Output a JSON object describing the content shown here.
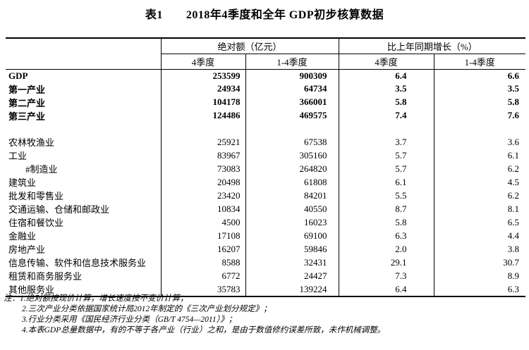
{
  "title": "表1　　2018年4季度和全年 GDP初步核算数据",
  "table": {
    "header": {
      "abs_group": "绝对额（亿元）",
      "growth_group": "比上年同期增长（%）",
      "q4": "4季度",
      "q14": "1-4季度"
    },
    "rows": [
      {
        "label": "GDP",
        "abs_q4": "253599",
        "abs_q14": "900309",
        "growth_q4": "6.4",
        "growth_q14": "6.6",
        "bold": true
      },
      {
        "label": "第一产业",
        "abs_q4": "24934",
        "abs_q14": "64734",
        "growth_q4": "3.5",
        "growth_q14": "3.5",
        "bold": true
      },
      {
        "label": "第二产业",
        "abs_q4": "104178",
        "abs_q14": "366001",
        "growth_q4": "5.8",
        "growth_q14": "5.8",
        "bold": true
      },
      {
        "label": "第三产业",
        "abs_q4": "124486",
        "abs_q14": "469575",
        "growth_q4": "7.4",
        "growth_q14": "7.6",
        "bold": true
      },
      {
        "blank": true
      },
      {
        "label": "农林牧渔业",
        "abs_q4": "25921",
        "abs_q14": "67538",
        "growth_q4": "3.7",
        "growth_q14": "3.6"
      },
      {
        "label": "工业",
        "abs_q4": "83967",
        "abs_q14": "305160",
        "growth_q4": "5.7",
        "growth_q14": "6.1"
      },
      {
        "label": "#制造业",
        "indent": true,
        "abs_q4": "73083",
        "abs_q14": "264820",
        "growth_q4": "5.7",
        "growth_q14": "6.2"
      },
      {
        "label": "建筑业",
        "abs_q4": "20498",
        "abs_q14": "61808",
        "growth_q4": "6.1",
        "growth_q14": "4.5"
      },
      {
        "label": "批发和零售业",
        "abs_q4": "23420",
        "abs_q14": "84201",
        "growth_q4": "5.5",
        "growth_q14": "6.2"
      },
      {
        "label": "交通运输、仓储和邮政业",
        "abs_q4": "10834",
        "abs_q14": "40550",
        "growth_q4": "8.7",
        "growth_q14": "8.1"
      },
      {
        "label": "住宿和餐饮业",
        "abs_q4": "4500",
        "abs_q14": "16023",
        "growth_q4": "5.8",
        "growth_q14": "6.5"
      },
      {
        "label": "金融业",
        "abs_q4": "17108",
        "abs_q14": "69100",
        "growth_q4": "6.3",
        "growth_q14": "4.4"
      },
      {
        "label": "房地产业",
        "abs_q4": "16207",
        "abs_q14": "59846",
        "growth_q4": "2.0",
        "growth_q14": "3.8"
      },
      {
        "label": "信息传输、软件和信息技术服务业",
        "abs_q4": "8588",
        "abs_q14": "32431",
        "growth_q4": "29.1",
        "growth_q14": "30.7"
      },
      {
        "label": "租赁和商务服务业",
        "abs_q4": "6772",
        "abs_q14": "24427",
        "growth_q4": "7.3",
        "growth_q14": "8.9"
      },
      {
        "label": "其他服务业",
        "abs_q4": "35783",
        "abs_q14": "139224",
        "growth_q4": "6.4",
        "growth_q14": "6.3"
      }
    ]
  },
  "notes": [
    "注：1.绝对额按现价计算，增长速度按不变价计算；",
    "2.三次产业分类依据国家统计局2012年制定的《三次产业划分规定》；",
    "3.行业分类采用《国民经济行业分类（GB/T 4754—2011）》；",
    "4.本表GDP总量数据中，有的不等于各产业（行业）之和，是由于数值修约误差所致，未作机械调整。"
  ],
  "colors": {
    "text": "#000000",
    "border": "#000000",
    "background": "#ffffff"
  }
}
